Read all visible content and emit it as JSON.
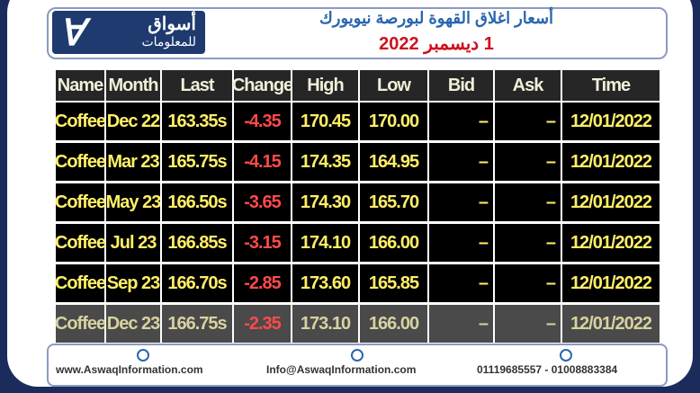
{
  "header": {
    "logo_title": "أسواق",
    "logo_subtitle": "للمعلومات",
    "title": "أسعار اغلاق القهوة لبورصة نيويورك",
    "date": "1 ديسمبر 2022"
  },
  "table": {
    "columns": [
      "Name",
      "Month",
      "Last",
      "Change",
      "High",
      "Low",
      "Bid",
      "Ask",
      "Time"
    ],
    "rows": [
      [
        "Coffee",
        "Dec 22",
        "163.35s",
        "-4.35",
        "170.45",
        "170.00",
        "–",
        "–",
        "12/01/2022"
      ],
      [
        "Coffee",
        "Mar 23",
        "165.75s",
        "-4.15",
        "174.35",
        "164.95",
        "–",
        "–",
        "12/01/2022"
      ],
      [
        "Coffee",
        "May 23",
        "166.50s",
        "-3.65",
        "174.30",
        "165.70",
        "–",
        "–",
        "12/01/2022"
      ],
      [
        "Coffee",
        "Jul 23",
        "166.85s",
        "-3.15",
        "174.10",
        "166.00",
        "–",
        "–",
        "12/01/2022"
      ],
      [
        "Coffee",
        "Sep 23",
        "166.70s",
        "-2.85",
        "173.60",
        "165.85",
        "–",
        "–",
        "12/01/2022"
      ],
      [
        "Coffee",
        "Dec 23",
        "166.75s",
        "-2.35",
        "173.10",
        "166.00",
        "–",
        "–",
        "12/01/2022"
      ]
    ]
  },
  "footer": {
    "website": "www.AswaqInformation.com",
    "email": "Info@AswaqInformation.com",
    "phones": "01119685557 - 01008883384"
  }
}
